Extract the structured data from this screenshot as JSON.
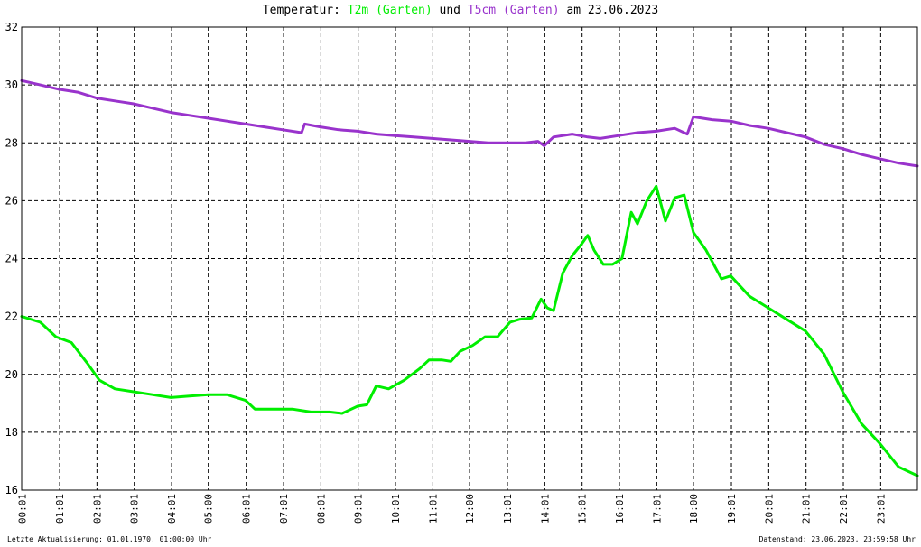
{
  "title": {
    "prefix": "Temperatur:",
    "series1": "T2m (Garten)",
    "connector": "und",
    "series2": "T5cm (Garten)",
    "suffix": "am 23.06.2023"
  },
  "footer": {
    "left": "Letzte Aktualisierung: 01.01.1970, 01:00:00 Uhr",
    "right": "Datenstand: 23.06.2023, 23:59:58 Uhr"
  },
  "colors": {
    "t2m": "#00ee00",
    "t5cm": "#9933cc",
    "grid": "#000000",
    "background": "#ffffff"
  },
  "chart_data": {
    "type": "line",
    "title": "Temperatur: T2m (Garten) und T5cm (Garten) am 23.06.2023",
    "xlabel": "",
    "ylabel": "",
    "ylim": [
      16,
      32
    ],
    "xlim": [
      "00:00",
      "24:00"
    ],
    "grid": true,
    "x_ticks": [
      "00:01",
      "01:01",
      "02:01",
      "03:01",
      "04:01",
      "05:00",
      "06:01",
      "07:01",
      "08:01",
      "09:01",
      "10:01",
      "11:01",
      "12:00",
      "13:01",
      "14:01",
      "15:01",
      "16:01",
      "17:01",
      "18:00",
      "19:01",
      "20:01",
      "21:01",
      "22:01",
      "23:01"
    ],
    "y_ticks": [
      16,
      18,
      20,
      22,
      24,
      26,
      28,
      30,
      32
    ],
    "series": [
      {
        "name": "T2m (Garten)",
        "color": "#00ee00",
        "points": [
          [
            "00:00",
            22.0
          ],
          [
            "00:30",
            21.8
          ],
          [
            "00:55",
            21.3
          ],
          [
            "01:20",
            21.1
          ],
          [
            "01:45",
            20.4
          ],
          [
            "02:05",
            19.8
          ],
          [
            "02:30",
            19.5
          ],
          [
            "03:00",
            19.4
          ],
          [
            "03:30",
            19.3
          ],
          [
            "04:00",
            19.2
          ],
          [
            "04:30",
            19.25
          ],
          [
            "05:00",
            19.3
          ],
          [
            "05:30",
            19.3
          ],
          [
            "06:00",
            19.1
          ],
          [
            "06:15",
            18.8
          ],
          [
            "06:45",
            18.8
          ],
          [
            "07:15",
            18.8
          ],
          [
            "07:45",
            18.7
          ],
          [
            "08:15",
            18.7
          ],
          [
            "08:35",
            18.65
          ],
          [
            "09:00",
            18.9
          ],
          [
            "09:15",
            18.95
          ],
          [
            "09:30",
            19.6
          ],
          [
            "09:50",
            19.5
          ],
          [
            "10:15",
            19.8
          ],
          [
            "10:40",
            20.2
          ],
          [
            "10:55",
            20.5
          ],
          [
            "11:15",
            20.5
          ],
          [
            "11:30",
            20.45
          ],
          [
            "11:45",
            20.8
          ],
          [
            "12:05",
            21.0
          ],
          [
            "12:25",
            21.3
          ],
          [
            "12:45",
            21.3
          ],
          [
            "13:05",
            21.8
          ],
          [
            "13:20",
            21.9
          ],
          [
            "13:40",
            21.95
          ],
          [
            "13:55",
            22.6
          ],
          [
            "14:05",
            22.3
          ],
          [
            "14:15",
            22.2
          ],
          [
            "14:30",
            23.5
          ],
          [
            "14:45",
            24.1
          ],
          [
            "15:00",
            24.5
          ],
          [
            "15:10",
            24.8
          ],
          [
            "15:20",
            24.3
          ],
          [
            "15:35",
            23.8
          ],
          [
            "15:50",
            23.8
          ],
          [
            "16:05",
            24.0
          ],
          [
            "16:20",
            25.6
          ],
          [
            "16:30",
            25.2
          ],
          [
            "16:45",
            26.0
          ],
          [
            "17:00",
            26.5
          ],
          [
            "17:15",
            25.3
          ],
          [
            "17:30",
            26.1
          ],
          [
            "17:45",
            26.2
          ],
          [
            "18:00",
            24.9
          ],
          [
            "18:20",
            24.3
          ],
          [
            "18:45",
            23.3
          ],
          [
            "19:00",
            23.4
          ],
          [
            "19:30",
            22.7
          ],
          [
            "20:00",
            22.3
          ],
          [
            "20:30",
            21.9
          ],
          [
            "21:00",
            21.5
          ],
          [
            "21:30",
            20.7
          ],
          [
            "22:00",
            19.4
          ],
          [
            "22:30",
            18.3
          ],
          [
            "23:00",
            17.6
          ],
          [
            "23:30",
            16.8
          ],
          [
            "24:00",
            16.5
          ]
        ]
      },
      {
        "name": "T5cm (Garten)",
        "color": "#9933cc",
        "points": [
          [
            "00:00",
            30.15
          ],
          [
            "00:30",
            30.0
          ],
          [
            "01:00",
            29.85
          ],
          [
            "01:30",
            29.75
          ],
          [
            "02:00",
            29.55
          ],
          [
            "02:30",
            29.45
          ],
          [
            "03:00",
            29.35
          ],
          [
            "03:30",
            29.2
          ],
          [
            "04:00",
            29.05
          ],
          [
            "04:30",
            28.95
          ],
          [
            "05:00",
            28.85
          ],
          [
            "05:30",
            28.75
          ],
          [
            "06:00",
            28.65
          ],
          [
            "06:30",
            28.55
          ],
          [
            "07:00",
            28.45
          ],
          [
            "07:30",
            28.35
          ],
          [
            "07:35",
            28.65
          ],
          [
            "08:00",
            28.55
          ],
          [
            "08:30",
            28.45
          ],
          [
            "09:00",
            28.4
          ],
          [
            "09:30",
            28.3
          ],
          [
            "10:00",
            28.25
          ],
          [
            "10:30",
            28.2
          ],
          [
            "11:00",
            28.15
          ],
          [
            "11:30",
            28.1
          ],
          [
            "12:00",
            28.05
          ],
          [
            "12:30",
            28.0
          ],
          [
            "13:00",
            28.0
          ],
          [
            "13:30",
            28.0
          ],
          [
            "13:50",
            28.05
          ],
          [
            "14:00",
            27.9
          ],
          [
            "14:15",
            28.2
          ],
          [
            "14:45",
            28.3
          ],
          [
            "15:10",
            28.2
          ],
          [
            "15:30",
            28.15
          ],
          [
            "16:00",
            28.25
          ],
          [
            "16:30",
            28.35
          ],
          [
            "17:00",
            28.4
          ],
          [
            "17:30",
            28.5
          ],
          [
            "17:50",
            28.3
          ],
          [
            "18:00",
            28.9
          ],
          [
            "18:30",
            28.8
          ],
          [
            "19:00",
            28.75
          ],
          [
            "19:30",
            28.6
          ],
          [
            "20:00",
            28.5
          ],
          [
            "20:30",
            28.35
          ],
          [
            "21:00",
            28.2
          ],
          [
            "21:30",
            27.95
          ],
          [
            "22:00",
            27.8
          ],
          [
            "22:30",
            27.6
          ],
          [
            "23:00",
            27.45
          ],
          [
            "23:30",
            27.3
          ],
          [
            "24:00",
            27.2
          ]
        ]
      }
    ]
  }
}
